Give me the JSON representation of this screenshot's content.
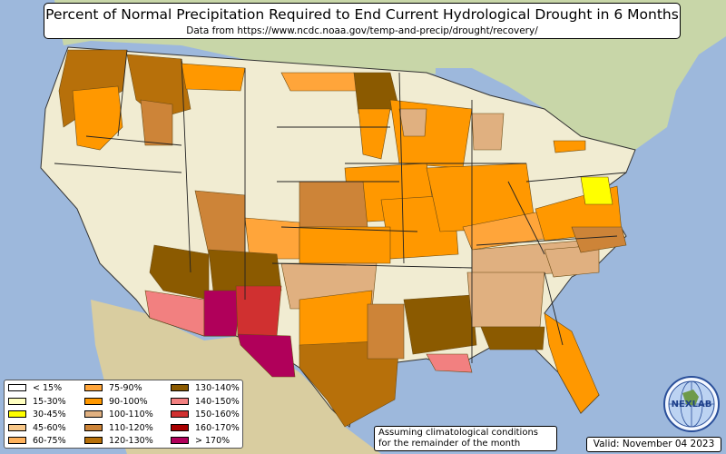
{
  "title": "Percent of Normal Precipitation Required to End Current Hydrological Drought in 6 Months",
  "subtitle": "Data from https://www.ncdc.noaa.gov/temp-and-precip/drought/recovery/",
  "legend": {
    "items": [
      {
        "label": "< 15%",
        "color": "#ffffff"
      },
      {
        "label": "15-30%",
        "color": "#ffffc0"
      },
      {
        "label": "30-45%",
        "color": "#ffff00"
      },
      {
        "label": "45-60%",
        "color": "#f8c88a"
      },
      {
        "label": "60-75%",
        "color": "#ffb25c"
      },
      {
        "label": "75-90%",
        "color": "#ffa53a"
      },
      {
        "label": "90-100%",
        "color": "#ff9800"
      },
      {
        "label": "100-110%",
        "color": "#e0b080"
      },
      {
        "label": "110-120%",
        "color": "#cd8438"
      },
      {
        "label": "120-130%",
        "color": "#b7700a"
      },
      {
        "label": "130-140%",
        "color": "#8b5a00"
      },
      {
        "label": "140-150%",
        "color": "#f28080"
      },
      {
        "label": "150-160%",
        "color": "#d03030"
      },
      {
        "label": "160-170%",
        "color": "#a80000"
      },
      {
        "label": "> 170%",
        "color": "#b0005a"
      }
    ]
  },
  "note": {
    "line1": "Assuming climatological conditions",
    "line2": "for the remainder of the month"
  },
  "valid": "Valid: November 04 2023",
  "logo": {
    "text": "NEXLAB",
    "icon": "globe-logo-icon"
  },
  "colors": {
    "ocean": "#9db8dc",
    "land_outside": "#cfd9b0",
    "us_land": "#f1ecd2"
  }
}
